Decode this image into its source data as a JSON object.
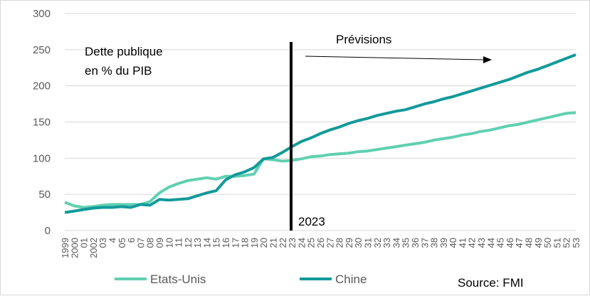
{
  "chart_data": {
    "type": "line",
    "title": "",
    "xlabel": "",
    "ylabel": "",
    "annotation_title_line1": "Dette publique",
    "annotation_title_line2": "en % du PIB",
    "forecast_label": "Prévisions",
    "marker_label": "2023",
    "source": "Source: FMI",
    "ylim": [
      0,
      300
    ],
    "yticks": [
      0,
      50,
      100,
      150,
      200,
      250,
      300
    ],
    "grid": true,
    "legend_position": "bottom",
    "x_tick_labels": [
      "1999",
      "2000",
      "01",
      "2002",
      "03",
      "4",
      "05",
      "6",
      "07",
      "08",
      "09",
      "10",
      "11",
      "12",
      "13",
      "14",
      "15",
      "16",
      "17",
      "18",
      "19",
      "20",
      "21",
      "22",
      "23",
      "24",
      "25",
      "26",
      "27",
      "28",
      "29",
      "30",
      "31",
      "32",
      "33",
      "34",
      "35",
      "36",
      "37",
      "38",
      "39",
      "40",
      "41",
      "42",
      "43",
      "44",
      "45",
      "46",
      "47",
      "48",
      "49",
      "50",
      "51",
      "52",
      "53"
    ],
    "x": [
      1999,
      2000,
      2001,
      2002,
      2003,
      2004,
      2005,
      2006,
      2007,
      2008,
      2009,
      2010,
      2011,
      2012,
      2013,
      2014,
      2015,
      2016,
      2017,
      2018,
      2019,
      2020,
      2021,
      2022,
      2023,
      2024,
      2025,
      2026,
      2027,
      2028,
      2029,
      2030,
      2031,
      2032,
      2033,
      2034,
      2035,
      2036,
      2037,
      2038,
      2039,
      2040,
      2041,
      2042,
      2043,
      2044,
      2045,
      2046,
      2047,
      2048,
      2049,
      2050,
      2051,
      2052,
      2053
    ],
    "series": [
      {
        "name": "Etats-Unis",
        "color": "#5fd0b2",
        "values": [
          39,
          34,
          32,
          33,
          35,
          36,
          36,
          36,
          36,
          40,
          52,
          60,
          65,
          69,
          71,
          73,
          71,
          75,
          75,
          76,
          78,
          99,
          98,
          96,
          97,
          99,
          102,
          103,
          105,
          106,
          107,
          109,
          110,
          112,
          114,
          116,
          118,
          120,
          122,
          125,
          127,
          129,
          132,
          134,
          137,
          139,
          142,
          145,
          147,
          150,
          153,
          156,
          159,
          162,
          163
        ]
      },
      {
        "name": "Chine",
        "color": "#139a9a",
        "values": [
          25,
          27,
          29,
          31,
          32,
          32,
          33,
          32,
          36,
          35,
          43,
          42,
          43,
          44,
          48,
          52,
          55,
          70,
          77,
          81,
          87,
          99,
          101,
          108,
          116,
          123,
          128,
          134,
          139,
          143,
          148,
          152,
          155,
          159,
          162,
          165,
          167,
          171,
          175,
          178,
          182,
          185,
          189,
          193,
          197,
          201,
          205,
          209,
          214,
          219,
          223,
          228,
          233,
          238,
          243
        ]
      }
    ]
  }
}
